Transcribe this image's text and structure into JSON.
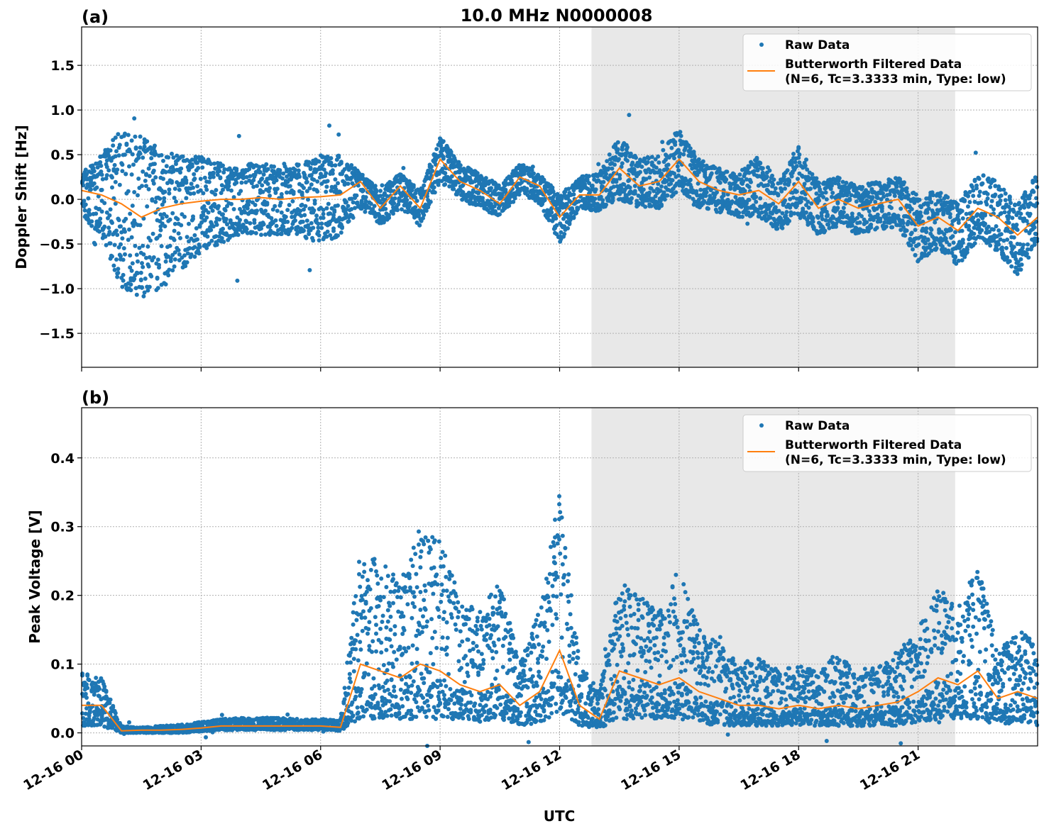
{
  "title": "10.0 MHz N0000008",
  "xlabel": "UTC",
  "x_ticks": [
    "12-16 00",
    "12-16 03",
    "12-16 06",
    "12-16 09",
    "12-16 12",
    "12-16 15",
    "12-16 18",
    "12-16 21"
  ],
  "colors": {
    "raw": "#1f77b4",
    "filtered": "#ff7f0e",
    "shade": "#e8e8e8"
  },
  "legend": {
    "raw": "Raw Data",
    "filtered_line1": "Butterworth Filtered Data",
    "filtered_line2": "(N=6, Tc=3.3333 min, Type: low)",
    "placement": "top-right"
  },
  "chart_data": [
    {
      "type": "scatter",
      "panel_label": "(a)",
      "ylabel": "Doppler Shift [Hz]",
      "y_ticks": [
        "1.5",
        "1.0",
        "0.5",
        "0.0",
        "−0.5",
        "−1.0",
        "−1.5"
      ],
      "y_tick_values": [
        1.5,
        1.0,
        0.5,
        0.0,
        -0.5,
        -1.0,
        -1.5
      ],
      "xlim_hours": [
        0,
        24
      ],
      "ylim": [
        -1.88,
        1.93
      ],
      "grid": true,
      "shaded_interval_hours": [
        12.8,
        21.93
      ],
      "x_hours": [
        0,
        0.5,
        1,
        1.5,
        2,
        2.5,
        3,
        3.5,
        4,
        4.5,
        5,
        5.5,
        6,
        6.5,
        7,
        7.5,
        8,
        8.5,
        9,
        9.5,
        10,
        10.5,
        11,
        11.5,
        12,
        12.5,
        13,
        13.5,
        14,
        14.5,
        15,
        15.5,
        16,
        16.5,
        17,
        17.5,
        18,
        18.5,
        19,
        19.5,
        20,
        20.5,
        21,
        21.5,
        22,
        22.5,
        23,
        23.5,
        24
      ],
      "filtered": [
        0.1,
        0.05,
        -0.05,
        -0.2,
        -0.1,
        -0.05,
        -0.02,
        0.0,
        0.0,
        0.02,
        0.0,
        0.02,
        0.03,
        0.05,
        0.2,
        -0.1,
        0.15,
        -0.1,
        0.45,
        0.2,
        0.1,
        -0.05,
        0.25,
        0.15,
        -0.2,
        0.05,
        0.05,
        0.35,
        0.15,
        0.2,
        0.45,
        0.2,
        0.1,
        0.05,
        0.1,
        -0.05,
        0.2,
        -0.1,
        0.0,
        -0.1,
        -0.05,
        0.0,
        -0.3,
        -0.2,
        -0.35,
        -0.1,
        -0.2,
        -0.4,
        -0.2
      ],
      "raw_low": [
        -0.2,
        -0.4,
        -1.0,
        -1.1,
        -1.0,
        -0.8,
        -0.6,
        -0.5,
        -0.4,
        -0.4,
        -0.4,
        -0.4,
        -0.5,
        -0.4,
        -0.1,
        -0.3,
        -0.1,
        -0.3,
        0.2,
        0.0,
        -0.1,
        -0.2,
        0.05,
        -0.05,
        -0.5,
        -0.1,
        -0.15,
        0.0,
        -0.1,
        -0.1,
        0.1,
        -0.1,
        -0.15,
        -0.2,
        -0.2,
        -0.35,
        -0.2,
        -0.4,
        -0.3,
        -0.4,
        -0.35,
        -0.3,
        -0.7,
        -0.55,
        -0.75,
        -0.45,
        -0.6,
        -0.85,
        -0.5
      ],
      "raw_high": [
        0.3,
        0.5,
        0.8,
        0.7,
        0.6,
        0.5,
        0.5,
        0.4,
        0.4,
        0.4,
        0.4,
        0.4,
        0.5,
        0.5,
        0.3,
        0.1,
        0.3,
        0.1,
        0.7,
        0.4,
        0.3,
        0.15,
        0.4,
        0.3,
        0.05,
        0.25,
        0.3,
        0.7,
        0.45,
        0.5,
        0.8,
        0.45,
        0.35,
        0.3,
        0.5,
        0.2,
        0.6,
        0.2,
        0.25,
        0.15,
        0.2,
        0.25,
        0.05,
        0.1,
        -0.05,
        0.3,
        0.2,
        -0.05,
        0.3
      ]
    },
    {
      "type": "scatter",
      "panel_label": "(b)",
      "ylabel": "Peak Voltage [V]",
      "y_ticks": [
        "0.4",
        "0.3",
        "0.2",
        "0.1",
        "0.0"
      ],
      "y_tick_values": [
        0.4,
        0.3,
        0.2,
        0.1,
        0.0
      ],
      "xlim_hours": [
        0,
        24
      ],
      "ylim": [
        -0.019,
        0.473
      ],
      "grid": true,
      "shaded_interval_hours": [
        12.8,
        21.93
      ],
      "x_hours": [
        0,
        0.5,
        1,
        1.5,
        2,
        2.5,
        3,
        3.5,
        4,
        4.5,
        5,
        5.5,
        6,
        6.5,
        7,
        7.5,
        8,
        8.5,
        9,
        9.5,
        10,
        10.5,
        11,
        11.5,
        12,
        12.5,
        13,
        13.5,
        14,
        14.5,
        15,
        15.5,
        16,
        16.5,
        17,
        17.5,
        18,
        18.5,
        19,
        19.5,
        20,
        20.5,
        21,
        21.5,
        22,
        22.5,
        23,
        23.5,
        24
      ],
      "filtered": [
        0.04,
        0.04,
        0.003,
        0.004,
        0.004,
        0.005,
        0.007,
        0.01,
        0.01,
        0.01,
        0.01,
        0.01,
        0.01,
        0.008,
        0.1,
        0.09,
        0.08,
        0.1,
        0.09,
        0.07,
        0.06,
        0.07,
        0.04,
        0.06,
        0.12,
        0.04,
        0.02,
        0.09,
        0.08,
        0.07,
        0.08,
        0.06,
        0.05,
        0.04,
        0.04,
        0.035,
        0.04,
        0.035,
        0.04,
        0.035,
        0.04,
        0.045,
        0.06,
        0.08,
        0.07,
        0.09,
        0.05,
        0.06,
        0.05
      ],
      "raw_low": [
        0.01,
        0.01,
        0.0,
        0.0,
        0.0,
        0.0,
        0.002,
        0.004,
        0.004,
        0.004,
        0.004,
        0.004,
        0.004,
        0.003,
        0.02,
        0.02,
        0.02,
        0.02,
        0.02,
        0.02,
        0.015,
        0.02,
        0.01,
        0.015,
        0.03,
        0.01,
        0.005,
        0.02,
        0.02,
        0.02,
        0.02,
        0.015,
        0.01,
        0.01,
        0.01,
        0.01,
        0.01,
        0.01,
        0.01,
        0.01,
        0.01,
        0.01,
        0.015,
        0.02,
        0.02,
        0.02,
        0.01,
        0.015,
        0.01
      ],
      "raw_high": [
        0.09,
        0.08,
        0.01,
        0.008,
        0.01,
        0.012,
        0.016,
        0.02,
        0.022,
        0.022,
        0.022,
        0.02,
        0.02,
        0.02,
        0.27,
        0.25,
        0.22,
        0.3,
        0.28,
        0.2,
        0.18,
        0.22,
        0.1,
        0.18,
        0.35,
        0.1,
        0.06,
        0.22,
        0.2,
        0.18,
        0.25,
        0.15,
        0.13,
        0.1,
        0.11,
        0.09,
        0.1,
        0.09,
        0.12,
        0.08,
        0.1,
        0.12,
        0.15,
        0.22,
        0.18,
        0.25,
        0.12,
        0.15,
        0.13
      ]
    }
  ]
}
